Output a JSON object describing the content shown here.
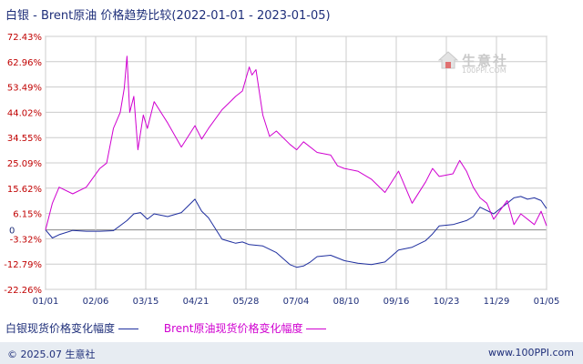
{
  "title": "白银 - Brent原油 价格趋势比较(2022-01-01 - 2023-01-05)",
  "watermark": {
    "name": "生意社",
    "url": "100PPI.COM"
  },
  "legend": {
    "silver": "白银现货价格变化幅度",
    "brent": "Brent原油现货价格变化幅度"
  },
  "footer": {
    "copyright": "© 2025.07 生意社",
    "site": "www.100PPI.com"
  },
  "colors": {
    "silver": "#1f2f9f",
    "brent": "#d000d0",
    "grid": "#cccccc",
    "plot_border": "#999999",
    "tick_text": "#1f2f7a",
    "ytick_text": "#c00000"
  },
  "chart_data": {
    "type": "line",
    "title": "白银 - Brent原油 价格趋势比较(2022-01-01 - 2023-01-05)",
    "x_tick_labels": [
      "01/01",
      "02/06",
      "03/15",
      "04/21",
      "05/28",
      "07/04",
      "08/10",
      "09/16",
      "10/23",
      "11/29",
      "01/05"
    ],
    "y_tick_labels": [
      "72.43%",
      "62.96%",
      "53.49%",
      "44.02%",
      "34.55%",
      "25.09%",
      "15.62%",
      "6.15%",
      "-3.32%",
      "-12.79%",
      "-22.26%"
    ],
    "y_ticks": [
      72.43,
      62.96,
      53.49,
      44.02,
      34.55,
      25.09,
      15.62,
      6.15,
      -3.32,
      -12.79,
      -22.26
    ],
    "zero_label": "0",
    "ylim": [
      -22.26,
      72.43
    ],
    "x_unit": "day index from 01/01 (0–369)",
    "xlim": [
      0,
      369
    ],
    "grid": true,
    "series": [
      {
        "name": "白银现货价格变化幅度",
        "x": [
          0,
          5,
          10,
          20,
          30,
          40,
          50,
          60,
          65,
          70,
          75,
          80,
          90,
          100,
          110,
          115,
          120,
          130,
          140,
          145,
          150,
          160,
          170,
          180,
          185,
          190,
          195,
          200,
          210,
          220,
          230,
          240,
          250,
          260,
          270,
          280,
          285,
          290,
          300,
          310,
          315,
          320,
          330,
          340,
          345,
          350,
          355,
          360,
          365,
          369
        ],
        "values": [
          0,
          -3.0,
          -1.8,
          -0.2,
          -0.5,
          -0.5,
          -0.3,
          3.5,
          6.0,
          6.5,
          4.0,
          6.0,
          5.0,
          6.5,
          11.5,
          7.0,
          4.5,
          -3.5,
          -5.0,
          -4.5,
          -5.5,
          -6.0,
          -8.5,
          -13.0,
          -14.0,
          -13.5,
          -12.0,
          -10.0,
          -9.5,
          -11.5,
          -12.5,
          -13.0,
          -12.0,
          -7.5,
          -6.5,
          -4.0,
          -1.5,
          1.5,
          2.0,
          3.5,
          5.0,
          8.5,
          6.0,
          10.0,
          12.0,
          12.5,
          11.5,
          12.0,
          11.0,
          8.0
        ]
      },
      {
        "name": "Brent原油现货价格变化幅度",
        "x": [
          0,
          5,
          10,
          20,
          30,
          40,
          45,
          50,
          55,
          58,
          60,
          62,
          65,
          68,
          72,
          75,
          80,
          90,
          100,
          110,
          115,
          120,
          130,
          140,
          145,
          150,
          152,
          155,
          160,
          165,
          170,
          180,
          185,
          190,
          200,
          210,
          215,
          220,
          230,
          240,
          250,
          260,
          270,
          280,
          285,
          290,
          300,
          305,
          310,
          315,
          320,
          325,
          330,
          340,
          345,
          350,
          360,
          365,
          369
        ],
        "values": [
          0,
          10.0,
          16.0,
          13.5,
          16.0,
          23.0,
          25.0,
          38.0,
          44.0,
          53.0,
          65.0,
          44.0,
          50.0,
          30.0,
          43.0,
          38.0,
          48.0,
          40.0,
          31.0,
          39.0,
          34.0,
          38.0,
          45.0,
          50.0,
          52.0,
          61.0,
          58.0,
          60.0,
          43.0,
          35.0,
          37.0,
          32.0,
          30.0,
          33.0,
          29.0,
          28.0,
          24.0,
          23.0,
          22.0,
          19.0,
          14.0,
          22.0,
          10.0,
          18.0,
          23.0,
          20.0,
          21.0,
          26.0,
          22.0,
          16.0,
          12.0,
          10.0,
          4.0,
          11.0,
          2.0,
          6.0,
          2.0,
          7.0,
          1.5
        ]
      }
    ]
  }
}
